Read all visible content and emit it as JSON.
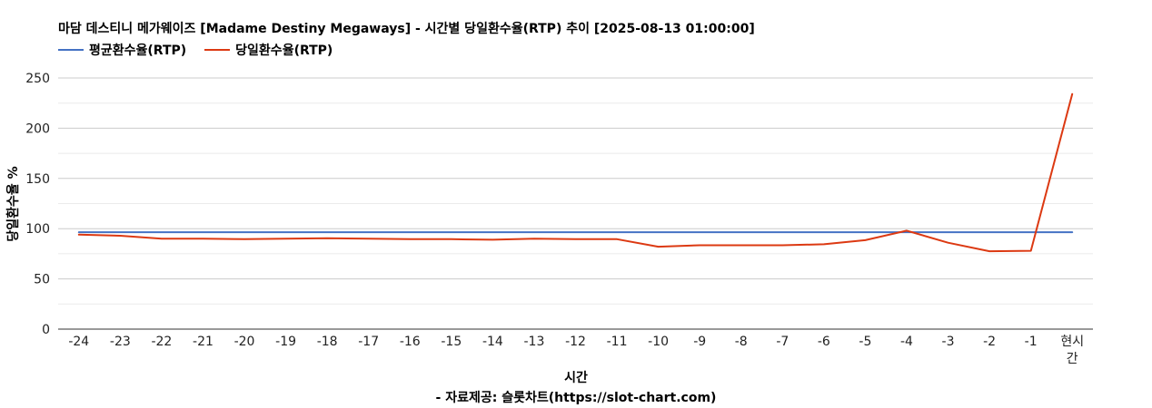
{
  "chart_data": {
    "type": "line",
    "title": "마담 데스티니 메가웨이즈 [Madame Destiny Megaways] - 시간별 당일환수율(RTP) 추이 [2025-08-13 01:00:00]",
    "xlabel": "시간",
    "ylabel": "당일환수율 %",
    "source": "- 자료제공: 슬롯차트(https://slot-chart.com)",
    "categories": [
      "-24",
      "-23",
      "-22",
      "-21",
      "-20",
      "-19",
      "-18",
      "-17",
      "-16",
      "-15",
      "-14",
      "-13",
      "-12",
      "-11",
      "-10",
      "-9",
      "-8",
      "-7",
      "-6",
      "-5",
      "-4",
      "-3",
      "-2",
      "-1",
      "현시간"
    ],
    "ylim": [
      0,
      250
    ],
    "yticks": [
      0,
      50,
      100,
      150,
      200,
      250
    ],
    "grid": true,
    "legend_position": "top-left",
    "series": [
      {
        "name": "평균환수율(RTP)",
        "color": "#4472c4",
        "values": [
          96.5,
          96.5,
          96.5,
          96.5,
          96.5,
          96.5,
          96.5,
          96.5,
          96.5,
          96.5,
          96.5,
          96.5,
          96.5,
          96.5,
          96.5,
          96.5,
          96.5,
          96.5,
          96.5,
          96.5,
          96.5,
          96.5,
          96.5,
          96.5,
          96.5
        ]
      },
      {
        "name": "당일환수율(RTP)",
        "color": "#dc3912",
        "values": [
          94,
          93,
          90,
          90,
          89.5,
          90,
          90.5,
          90,
          89.5,
          89.5,
          89,
          90,
          89.5,
          89.5,
          82,
          83.5,
          83.5,
          83.5,
          84.5,
          88.5,
          98,
          86,
          77.5,
          78,
          234
        ]
      }
    ]
  }
}
